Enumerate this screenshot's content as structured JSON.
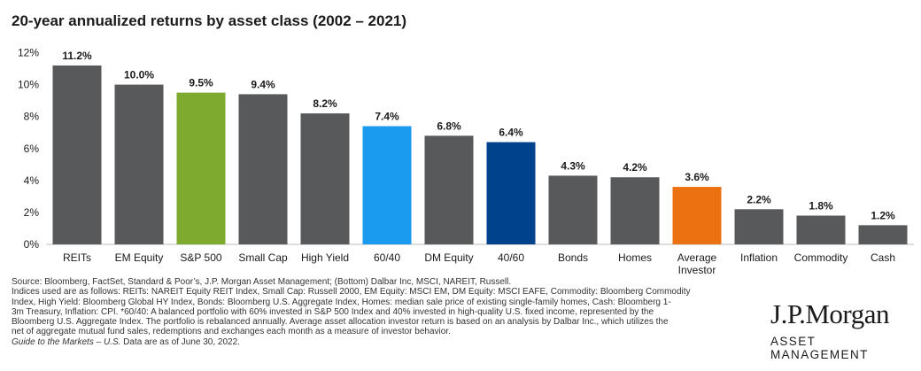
{
  "chart_data": {
    "type": "bar",
    "title": "20-year annualized returns by asset class (2002 – 2021)",
    "categories": [
      [
        "REITs"
      ],
      [
        "EM Equity"
      ],
      [
        "S&P 500"
      ],
      [
        "Small Cap"
      ],
      [
        "High Yield"
      ],
      [
        "60/40"
      ],
      [
        "DM Equity"
      ],
      [
        "40/60"
      ],
      [
        "Bonds"
      ],
      [
        "Homes"
      ],
      [
        "Average",
        "Investor"
      ],
      [
        "Inflation"
      ],
      [
        "Commodity"
      ],
      [
        "Cash"
      ]
    ],
    "values": [
      11.2,
      10.0,
      9.5,
      9.4,
      8.2,
      7.4,
      6.8,
      6.4,
      4.3,
      4.2,
      3.6,
      2.2,
      1.8,
      1.2
    ],
    "data_labels": [
      "11.2%",
      "10.0%",
      "9.5%",
      "9.4%",
      "8.2%",
      "7.4%",
      "6.8%",
      "6.4%",
      "4.3%",
      "4.2%",
      "3.6%",
      "2.2%",
      "1.8%",
      "1.2%"
    ],
    "bar_colors": [
      "#58595b",
      "#58595b",
      "#7daa2f",
      "#58595b",
      "#58595b",
      "#1a9bf0",
      "#58595b",
      "#00438c",
      "#58595b",
      "#58595b",
      "#ec7211",
      "#58595b",
      "#58595b",
      "#58595b"
    ],
    "ylim": [
      0,
      12
    ],
    "yticks": [
      0,
      2,
      4,
      6,
      8,
      10,
      12
    ],
    "ytick_labels": [
      "0%",
      "2%",
      "4%",
      "6%",
      "8%",
      "10%",
      "12%"
    ],
    "xlabel": "",
    "ylabel": "",
    "grid": false
  },
  "footnotes": {
    "lines": [
      "Source: Bloomberg, FactSet, Standard & Poor’s, J.P. Morgan Asset Management; (Bottom) Dalbar Inc, MSCI, NAREIT, Russell.",
      "Indices used are as follows: REITs: NAREIT Equity REIT Index, Small Cap: Russell 2000, EM Equity: MSCI EM, DM Equity: MSCI EAFE, Commodity: Bloomberg Commodity",
      "Index, High Yield: Bloomberg Global HY Index, Bonds: Bloomberg U.S. Aggregate Index, Homes: median sale price of existing single-family homes, Cash: Bloomberg 1-",
      "3m Treasury, Inflation: CPI. *60/40: A balanced portfolio with 60% invested in S&P 500 Index and 40% invested in high-quality U.S. fixed income, represented by the",
      "Bloomberg U.S. Aggregate Index. The portfolio is rebalanced annually. Average asset allocation investor return is based on an analysis by Dalbar Inc., which utilizes the",
      "net of aggregate mutual fund sales, redemptions and exchanges each month as a measure of investor behavior."
    ],
    "guide_italic": "Guide to the Markets – U.S.",
    "guide_rest": " Data are as of June 30, 2022."
  },
  "logo": {
    "brand": "J.P.Morgan",
    "sub": "ASSET MANAGEMENT"
  }
}
